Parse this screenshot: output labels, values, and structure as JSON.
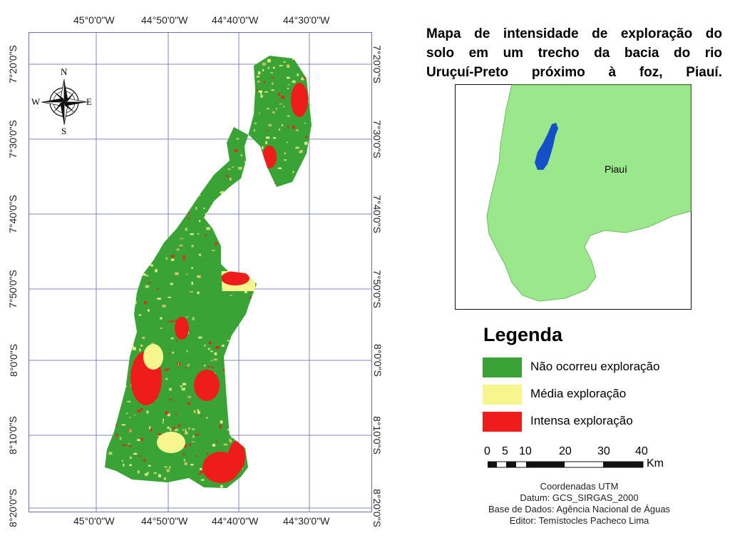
{
  "title_lines": [
    "Mapa de intensidade de exploração do",
    "solo em um trecho da bacia do rio",
    "Uruçuí-Preto próximo à foz, Piauí."
  ],
  "longitudes": [
    "45°0'0\"W",
    "44°50'0\"W",
    "44°40'0\"W",
    "44°30'0\"W"
  ],
  "latitudes": [
    "7°20'0\"S",
    "7°30'0\"S",
    "7°40'0\"S",
    "7°50'0\"S",
    "8°0'0\"S",
    "8°10'0\"S",
    "8°20'0\"S"
  ],
  "compass": {
    "n": "N",
    "s": "S",
    "e": "E",
    "w": "W"
  },
  "inset_label": "Piauí",
  "legend": {
    "title": "Legenda",
    "items": [
      {
        "label": "Não ocorreu exploração",
        "color": "#3aa335"
      },
      {
        "label": "Média exploração",
        "color": "#f7f58d"
      },
      {
        "label": "Intensa exploração",
        "color": "#ef1c1c"
      }
    ]
  },
  "scalebar": {
    "ticks": [
      "0",
      "5",
      "10",
      "20",
      "30",
      "40"
    ],
    "unit": "Km"
  },
  "credits": [
    "Coordenadas UTM",
    "Datum: GCS_SIRGAS_2000",
    "Base de Dados: Agência Nacional de Águas",
    "Editor: Temístocles Pacheco Lima"
  ],
  "colors": {
    "grid": "#6a6fb5",
    "inset_land": "#9be88c",
    "inset_water": "#1650c8"
  }
}
